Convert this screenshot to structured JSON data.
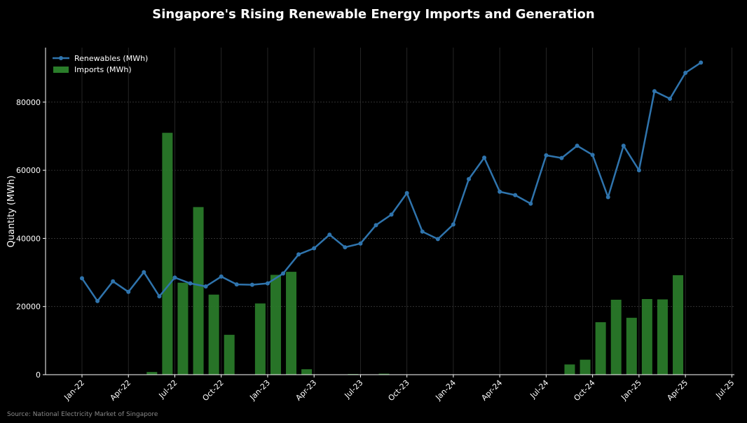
{
  "chart_data": {
    "type": "bar+line",
    "title": "Singapore's Rising Renewable Energy Imports and Generation",
    "ylabel": "Quantity (MWh)",
    "xlabel": "",
    "source_note": "Source: National Electricity Market of Singapore",
    "months": [
      "Jan-22",
      "Feb-22",
      "Mar-22",
      "Apr-22",
      "May-22",
      "Jun-22",
      "Jul-22",
      "Aug-22",
      "Sep-22",
      "Oct-22",
      "Nov-22",
      "Dec-22",
      "Jan-23",
      "Feb-23",
      "Mar-23",
      "Apr-23",
      "May-23",
      "Jun-23",
      "Jul-23",
      "Aug-23",
      "Sep-23",
      "Oct-23",
      "Nov-23",
      "Dec-23",
      "Jan-24",
      "Feb-24",
      "Mar-24",
      "Apr-24",
      "May-24",
      "Jun-24",
      "Jul-24",
      "Aug-24",
      "Sep-24",
      "Oct-24",
      "Nov-24",
      "Dec-24",
      "Jan-25",
      "Feb-25",
      "Mar-25",
      "Apr-25",
      "May-25"
    ],
    "x_ticks": [
      "Jan-22",
      "Apr-22",
      "Jul-22",
      "Oct-22",
      "Jan-23",
      "Apr-23",
      "Jul-23",
      "Oct-23",
      "Jan-24",
      "Apr-24",
      "Jul-24",
      "Oct-24",
      "Jan-25",
      "Apr-25",
      "Jul-25"
    ],
    "y_ticks": [
      0,
      20000,
      40000,
      60000,
      80000
    ],
    "ylim": [
      0,
      96000
    ],
    "grid": true,
    "legend_position": "top-left",
    "series": [
      {
        "name": "Renewables (MWh)",
        "kind": "line",
        "color": "#2f74ad",
        "values": [
          28300,
          21600,
          27400,
          24300,
          30100,
          23000,
          28500,
          26800,
          25900,
          28800,
          26500,
          26400,
          26800,
          29700,
          35300,
          37100,
          41100,
          37400,
          38500,
          43900,
          47000,
          53300,
          42000,
          39800,
          44100,
          57400,
          63700,
          53700,
          52700,
          50200,
          64400,
          63600,
          67200,
          64500,
          52100,
          67200,
          60000,
          83200,
          81000,
          88600,
          91600
        ]
      },
      {
        "name": "Imports (MWh)",
        "kind": "bar",
        "color": "#2a7d2a",
        "values": [
          0,
          0,
          0,
          0,
          800,
          71000,
          27000,
          49200,
          23500,
          11700,
          0,
          20900,
          29300,
          30200,
          1600,
          0,
          0,
          200,
          0,
          300,
          0,
          0,
          0,
          0,
          0,
          0,
          0,
          0,
          0,
          0,
          0,
          3000,
          4400,
          15400,
          22000,
          16700,
          22200,
          22100,
          29200,
          0,
          0
        ]
      }
    ]
  }
}
